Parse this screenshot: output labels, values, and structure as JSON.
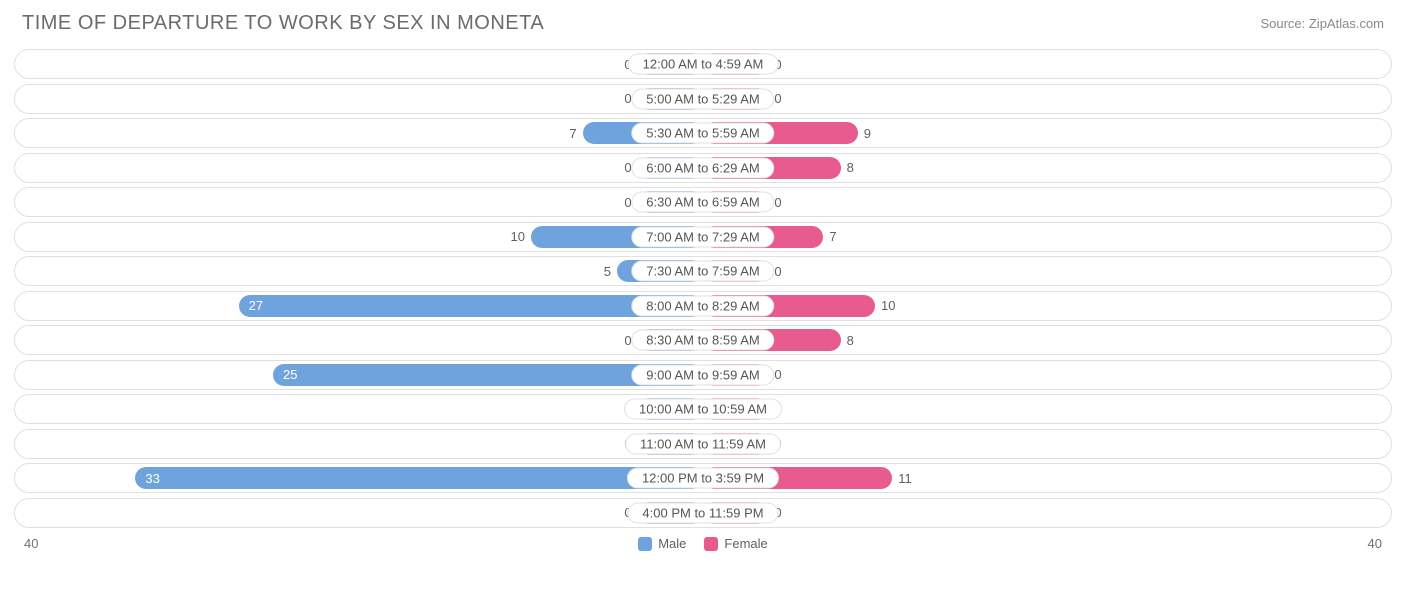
{
  "title": "TIME OF DEPARTURE TO WORK BY SEX IN MONETA",
  "source": "Source: ZipAtlas.com",
  "axis_max": 40,
  "axis_label_left": "40",
  "axis_label_right": "40",
  "min_bar_percent": 9.5,
  "colors": {
    "male_fill": "#6fa3dd",
    "male_min": "#a9c6e8",
    "female_fill": "#e85b8f",
    "female_min": "#f5aac5",
    "row_border": "#e0e0e0",
    "text": "#606060",
    "title": "#6b6b6b",
    "background": "#ffffff"
  },
  "legend": [
    {
      "label": "Male",
      "color": "#6fa3dd"
    },
    {
      "label": "Female",
      "color": "#e85b8f"
    }
  ],
  "rows": [
    {
      "label": "12:00 AM to 4:59 AM",
      "male": 0,
      "female": 0
    },
    {
      "label": "5:00 AM to 5:29 AM",
      "male": 0,
      "female": 0
    },
    {
      "label": "5:30 AM to 5:59 AM",
      "male": 7,
      "female": 9
    },
    {
      "label": "6:00 AM to 6:29 AM",
      "male": 0,
      "female": 8
    },
    {
      "label": "6:30 AM to 6:59 AM",
      "male": 0,
      "female": 0
    },
    {
      "label": "7:00 AM to 7:29 AM",
      "male": 10,
      "female": 7
    },
    {
      "label": "7:30 AM to 7:59 AM",
      "male": 5,
      "female": 0
    },
    {
      "label": "8:00 AM to 8:29 AM",
      "male": 27,
      "female": 10
    },
    {
      "label": "8:30 AM to 8:59 AM",
      "male": 0,
      "female": 8
    },
    {
      "label": "9:00 AM to 9:59 AM",
      "male": 25,
      "female": 0
    },
    {
      "label": "10:00 AM to 10:59 AM",
      "male": 0,
      "female": 0
    },
    {
      "label": "11:00 AM to 11:59 AM",
      "male": 0,
      "female": 0
    },
    {
      "label": "12:00 PM to 3:59 PM",
      "male": 33,
      "female": 11
    },
    {
      "label": "4:00 PM to 11:59 PM",
      "male": 0,
      "female": 0
    }
  ],
  "label_inside_threshold": 18
}
